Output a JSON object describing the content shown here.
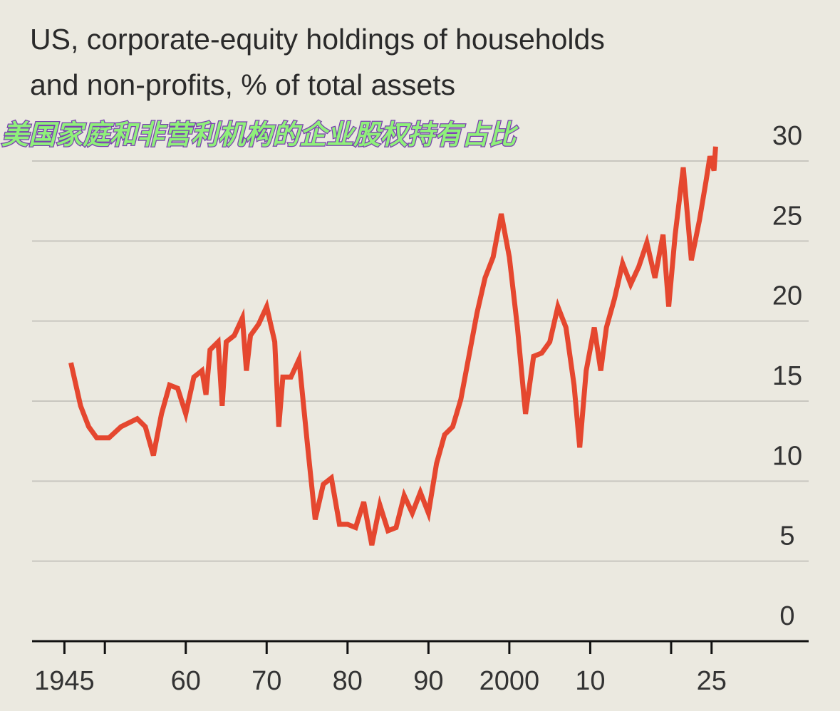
{
  "chart_data": {
    "type": "line",
    "title": [
      "US, corporate-equity holdings of households",
      "and non-profits, % of total assets"
    ],
    "subtitle": "美国家庭和非营利机构的企业股权持有占比",
    "series": [
      {
        "color": "#e5472f",
        "x": [
          1945.8,
          1947,
          1948,
          1949,
          1950.5,
          1952,
          1954,
          1955,
          1956,
          1957,
          1958,
          1959,
          1960,
          1961,
          1962,
          1962.5,
          1963,
          1964,
          1964.5,
          1965,
          1966,
          1967,
          1967.5,
          1968,
          1969,
          1970,
          1971,
          1971.5,
          1972,
          1973,
          1974,
          1975,
          1976,
          1977,
          1978,
          1979,
          1980,
          1981,
          1982,
          1983,
          1984,
          1985,
          1986,
          1987,
          1988,
          1989,
          1990,
          1991,
          1992,
          1993,
          1994,
          1995,
          1996,
          1997,
          1998,
          1999,
          2000,
          2001,
          2002,
          2003,
          2004,
          2005,
          2006,
          2007,
          2008,
          2008.7,
          2009.5,
          2010.5,
          2011.3,
          2012,
          2013,
          2014,
          2015,
          2016,
          2017,
          2018,
          2019,
          2019.7,
          2020.5,
          2021.5,
          2022.5,
          2023.5,
          2024.3,
          2024.8,
          2025.3,
          2025.5
        ],
        "values": [
          17.4,
          14.7,
          13.4,
          12.7,
          12.7,
          13.4,
          13.9,
          13.4,
          11.6,
          14.2,
          16.0,
          15.8,
          14.2,
          16.5,
          16.9,
          15.4,
          18.2,
          18.7,
          14.7,
          18.7,
          19.1,
          20.2,
          16.9,
          19.1,
          19.8,
          20.9,
          18.7,
          13.4,
          16.5,
          16.5,
          17.6,
          12.5,
          7.6,
          9.8,
          10.2,
          7.3,
          7.3,
          7.1,
          8.7,
          6.0,
          8.5,
          6.9,
          7.1,
          9.1,
          8.0,
          9.3,
          8.0,
          11.1,
          12.9,
          13.4,
          15.1,
          17.8,
          20.5,
          22.7,
          24.0,
          26.7,
          24.0,
          19.6,
          14.2,
          17.8,
          18.0,
          18.7,
          20.9,
          19.6,
          16.0,
          12.1,
          16.9,
          19.6,
          16.9,
          19.6,
          21.4,
          23.6,
          22.3,
          23.4,
          24.9,
          22.7,
          25.4,
          20.9,
          25.4,
          29.6,
          23.8,
          26.3,
          28.7,
          30.3,
          29.4,
          30.9
        ]
      }
    ],
    "xlim": [
      1941,
      2037
    ],
    "xticks": [
      {
        "value": 1945,
        "label": "1945"
      },
      {
        "value": 1960,
        "label": "60"
      },
      {
        "value": 1970,
        "label": "70"
      },
      {
        "value": 1980,
        "label": "80"
      },
      {
        "value": 1990,
        "label": "90"
      },
      {
        "value": 2000,
        "label": "2000"
      },
      {
        "value": 2010,
        "label": "10"
      },
      {
        "value": 2025,
        "label": "25"
      }
    ],
    "xticks_minor": [
      1950,
      2020
    ],
    "ylim": [
      0,
      30
    ],
    "yticks": [
      0,
      5,
      10,
      15,
      20,
      25,
      30
    ],
    "grid": true
  }
}
